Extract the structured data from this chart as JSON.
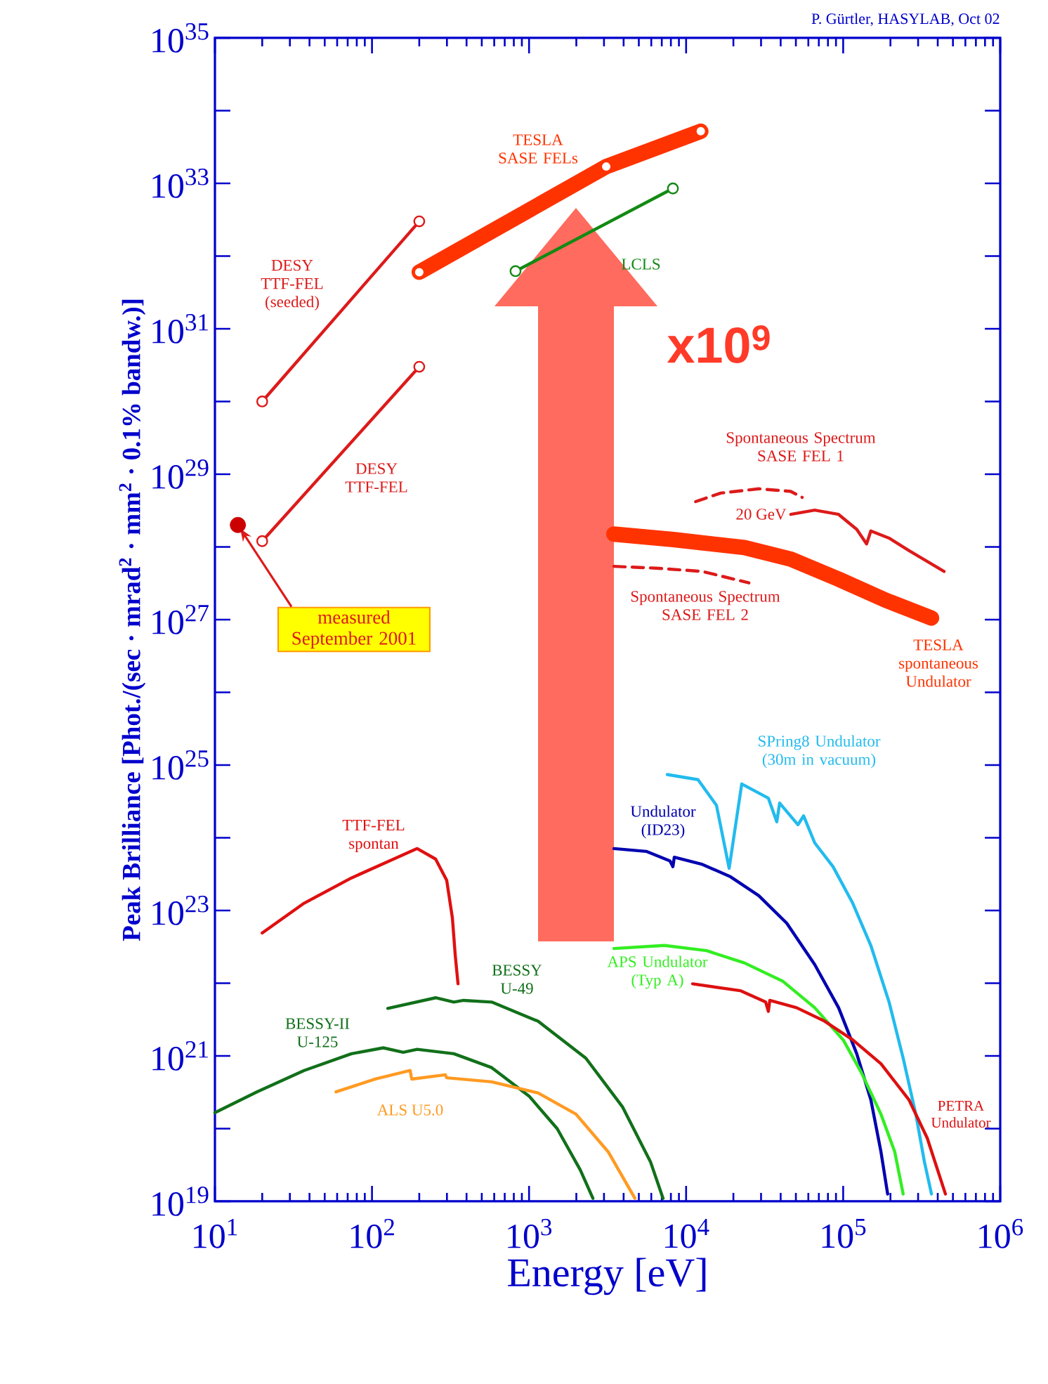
{
  "chart_data": {
    "type": "line",
    "xlabel": "Energy [eV]",
    "ylabel": "Peak Brilliance [Phot./(sec · mrad$^{2}$ · mm$^{2}$ · 0.1% bandw.)]",
    "log": "xy",
    "xlim": [
      10,
      1000000
    ],
    "ylim": [
      1e+19,
      1e+35
    ],
    "xticks": [
      {
        "value": 10,
        "label": "10$^{1}$"
      },
      {
        "value": 100,
        "label": "10$^{2}$"
      },
      {
        "value": 1000,
        "label": "10$^{3}$"
      },
      {
        "value": 10000,
        "label": "10$^{4}$"
      },
      {
        "value": 100000,
        "label": "10$^{5}$"
      },
      {
        "value": 1000000,
        "label": "10$^{6}$"
      }
    ],
    "yticks": [
      {
        "value": 1e+19,
        "label": "10$^{19}$"
      },
      {
        "value": 1e+20,
        "label": null
      },
      {
        "value": 1e+21,
        "label": "10$^{21}$"
      },
      {
        "value": 1e+22,
        "label": null
      },
      {
        "value": 1e+23,
        "label": "10$^{23}$"
      },
      {
        "value": 1e+24,
        "label": null
      },
      {
        "value": 1e+25,
        "label": "10$^{25}$"
      },
      {
        "value": 1e+26,
        "label": null
      },
      {
        "value": 1e+27,
        "label": "10$^{27}$"
      },
      {
        "value": 1e+28,
        "label": null
      },
      {
        "value": 1e+29,
        "label": "10$^{29}$"
      },
      {
        "value": 1e+30,
        "label": null
      },
      {
        "value": 1e+31,
        "label": "10$^{31}$"
      },
      {
        "value": 1e+32,
        "label": null
      },
      {
        "value": 1e+33,
        "label": "10$^{33}$"
      },
      {
        "value": 1e+34,
        "label": null
      },
      {
        "value": 1e+35,
        "label": "10$^{35}$"
      }
    ],
    "series": [
      {
        "name": "DESY TTF-FEL (seeded)",
        "color": "#dd1a1a",
        "marker": "circle",
        "x": [
          20,
          200
        ],
        "values": [
          1e+30,
          3e+32
        ]
      },
      {
        "name": "DESY TTF-FEL",
        "color": "#dd1a1a",
        "marker": "circle",
        "x": [
          20,
          200
        ],
        "values": [
          1.2e+28,
          3e+30
        ]
      },
      {
        "type": "scatter",
        "color": "#cc0000",
        "marker": "circle",
        "x": [
          14
        ],
        "values": [
          2e+28
        ]
      },
      {
        "name": "TESLA SASE FELs",
        "color": "#ff3300",
        "marker": "circle",
        "x": [
          200,
          3100,
          12400
        ],
        "values": [
          6e+31,
          1.7e+33,
          5.2e+33
        ]
      },
      {
        "name": "LCLS",
        "color": "#138a13",
        "marker": "circle",
        "x": [
          820,
          8240
        ],
        "values": [
          6.2e+31,
          8.5e+32
        ]
      },
      {
        "name": "TTF-FEL spontan",
        "color": "#e01010",
        "x": [
          20,
          37,
          74,
          129,
          194,
          254,
          299,
          325,
          339,
          353
        ],
        "values": [
          4.9e+22,
          1.26e+23,
          2.8e+23,
          4.8e+23,
          7.1e+23,
          5.1e+23,
          2.6e+23,
          7.9e+22,
          2.4e+22,
          9.8e+21
        ]
      },
      {
        "name": "BESSY-II U-125",
        "color": "#11701a",
        "x": [
          10,
          18.5,
          37,
          74,
          118,
          158,
          194,
          332,
          578,
          1000,
          1510,
          2120,
          2550
        ],
        "values": [
          1.66e+20,
          3.2e+20,
          6.3e+20,
          1.07e+21,
          1.29e+21,
          1.12e+21,
          1.23e+21,
          1.07e+21,
          6.9e+20,
          2.8e+20,
          1e+20,
          2.7e+19,
          1.1e+19
        ]
      },
      {
        "name": "ALS U5.0",
        "color": "#ff9a22",
        "x": [
          59,
          105,
          175,
          179,
          293,
          299,
          578,
          1140,
          1990,
          3190,
          4720
        ],
        "values": [
          3.2e+20,
          4.8e+20,
          6.3e+20,
          4.8e+20,
          5.5e+20,
          5e+20,
          4.4e+20,
          3.1e+20,
          1.58e+20,
          4.8e+19,
          1.1e+19
        ]
      },
      {
        "name": "BESSY U-49",
        "color": "#11701a",
        "x": [
          126,
          254,
          332,
          383,
          578,
          1140,
          2300,
          3930,
          5930,
          7130
        ],
        "values": [
          4.5e+21,
          6.3e+21,
          5.5e+21,
          5.8e+21,
          5.5e+21,
          3e+21,
          9.3e+20,
          2e+20,
          3.5e+19,
          1.1e+19
        ]
      },
      {
        "name": "Undulator (ID23)",
        "color": "#0000b0",
        "x": [
          3470,
          5570,
          7900,
          8240,
          8410,
          12700,
          19200,
          29000,
          43700,
          65900,
          93500,
          122000,
          150000,
          174000,
          192000
        ],
        "values": [
          7.1e+23,
          6.5e+23,
          4.8e+23,
          4e+23,
          5.4e+23,
          4.3e+23,
          2.9e+23,
          1.6e+23,
          6.7e+22,
          1.8e+22,
          4.6e+21,
          1.07e+21,
          2.5e+20,
          4.8e+19,
          1.26e+19
        ]
      },
      {
        "name": "SPring8 Undulator (30m in vacuum)",
        "color": "#22bbee",
        "x": [
          7590,
          11900,
          15600,
          18800,
          22600,
          33400,
          37800,
          39400,
          51500,
          56000,
          65900,
          86200,
          115000,
          150000,
          196000,
          241000,
          290000,
          329000,
          365000
        ],
        "values": [
          7.4e+24,
          6.3e+24,
          2.8e+24,
          3.8e+23,
          5.5e+24,
          3.5e+24,
          1.66e+24,
          3e+24,
          1.51e+24,
          2e+24,
          8.5e+23,
          4e+23,
          1.26e+23,
          3.3e+22,
          5.5e+21,
          9.3e+20,
          1.58e+20,
          3.5e+19,
          1.26e+19
        ]
      },
      {
        "name": "APS Undulator (Typ A)",
        "color": "#33ee22",
        "x": [
          3470,
          7280,
          13500,
          23500,
          41100,
          65900,
          100000,
          130000,
          174000,
          213000,
          241000
        ],
        "values": [
          3e+22,
          3.3e+22,
          2.8e+22,
          1.9e+22,
          1.07e+22,
          4.6e+21,
          1.66e+21,
          6e+20,
          1.58e+20,
          4.8e+19,
          1.26e+19
        ]
      },
      {
        "name": "PETRA Undulator",
        "color": "#dd1010",
        "x": [
          11000,
          22100,
          32100,
          33400,
          34100,
          50500,
          76200,
          115000,
          174000,
          262000,
          343000,
          448000
        ],
        "values": [
          9.8e+21,
          7.9e+21,
          5.5e+21,
          4.1e+21,
          5.8e+21,
          4.6e+21,
          3e+21,
          1.66e+21,
          7.8e+20,
          2.5e+20,
          7.4e+19,
          1.26e+19
        ]
      },
      {
        "name": "Spontaneous Spectrum SASE FEL 1",
        "color": "#dd1a1a",
        "line_style": "dashed",
        "x": [
          11500,
          16600,
          29000,
          46400,
          54800
        ],
        "values": [
          4.2e+28,
          5.5e+28,
          6.3e+28,
          5.8e+28,
          4.8e+28
        ]
      },
      {
        "name": "20 GeV",
        "color": "#dd1a1a",
        "x": [
          46400,
          65900,
          93500,
          122000,
          141000,
          150000,
          196000,
          262000,
          439000
        ],
        "values": [
          2.8e+28,
          3.2e+28,
          2.8e+28,
          1.74e+28,
          1.1e+28,
          1.66e+28,
          1.32e+28,
          8.9e+27,
          4.6e+27
        ]
      },
      {
        "name": "Spontaneous Spectrum SASE FEL 2",
        "color": "#dd1a1a",
        "line_style": "dashed",
        "x": [
          3470,
          6440,
          12700,
          25100
        ],
        "values": [
          5.4e+27,
          5.1e+27,
          4.6e+27,
          3.2e+27
        ]
      },
      {
        "name": "TESLA spontaneous Undulator",
        "color": "#ff3300",
        "x": [
          3470,
          8300,
          23500,
          46400,
          93500,
          185000,
          365000
        ],
        "values": [
          1.5e+28,
          1.26e+28,
          9.8e+27,
          6.8e+27,
          3.6e+27,
          1.86e+27,
          1.05e+27
        ]
      }
    ],
    "annotations": [
      {
        "text": "measured September 2001",
        "x": 14,
        "y": 2e+28
      },
      "x10$^{9}$",
      "P. Gürtler, HASYLAB, Oct 02"
    ]
  }
}
